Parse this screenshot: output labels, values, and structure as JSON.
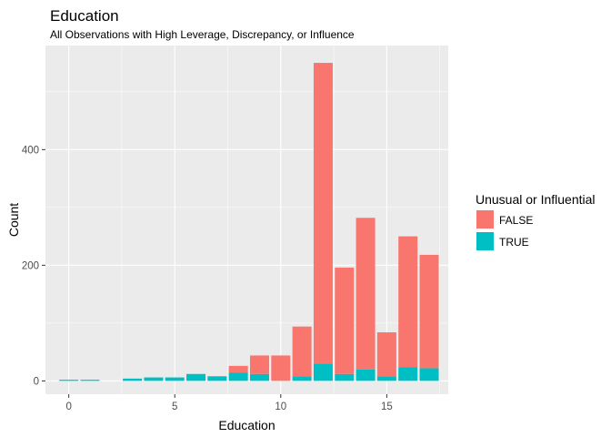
{
  "chart_data": {
    "type": "bar",
    "stacked": true,
    "title": "Education",
    "subtitle": "All Observations with High Leverage, Discrepancy, or Influence",
    "xlabel": "Education",
    "ylabel": "Count",
    "x": [
      0,
      1,
      3,
      4,
      5,
      6,
      7,
      8,
      9,
      10,
      11,
      12,
      13,
      14,
      15,
      16,
      17
    ],
    "series": [
      {
        "name": "FALSE",
        "color": "#F8766D",
        "values": [
          0,
          0,
          0,
          0,
          0,
          0,
          0,
          12,
          32,
          44,
          86,
          520,
          184,
          262,
          76,
          226,
          196
        ]
      },
      {
        "name": "TRUE",
        "color": "#00BFC4",
        "values": [
          2,
          2,
          4,
          6,
          6,
          12,
          8,
          14,
          12,
          0,
          8,
          30,
          12,
          20,
          8,
          24,
          22
        ]
      }
    ],
    "xlim": [
      -1.1,
      17.9
    ],
    "ylim": [
      -23,
      580
    ],
    "xticks": [
      0,
      5,
      10,
      15
    ],
    "yticks": [
      0,
      200,
      400
    ],
    "legend": {
      "title": "Unusual or Influential",
      "position": "right",
      "items": [
        "FALSE",
        "TRUE"
      ]
    },
    "grid": true
  }
}
